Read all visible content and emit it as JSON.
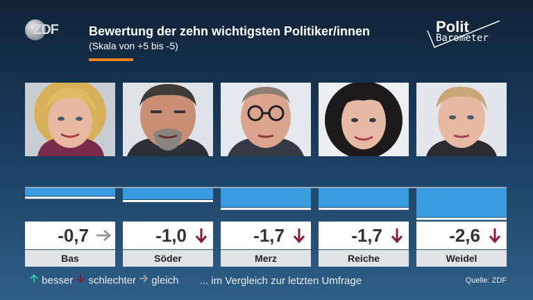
{
  "header": {
    "logo_text": "ZDF",
    "title": "Bewertung der zehn wichtigsten Politiker/innen",
    "subtitle": "(Skala von +5 bis -5)",
    "brand_line1": "Polit",
    "brand_line2": "Barometer"
  },
  "colors": {
    "bar": "#3b9be0",
    "accent": "#f0801e",
    "down": "#8b1a3a",
    "same": "#9a9a9a",
    "up": "#2ec4a8"
  },
  "people": [
    {
      "name": "Bas",
      "value_label": "-0,7",
      "trend": "same",
      "trend_icon": "arrow-right-icon"
    },
    {
      "name": "Söder",
      "value_label": "-1,0",
      "trend": "down",
      "trend_icon": "arrow-down-icon"
    },
    {
      "name": "Merz",
      "value_label": "-1,7",
      "trend": "down",
      "trend_icon": "arrow-down-icon"
    },
    {
      "name": "Reiche",
      "value_label": "-1,7",
      "trend": "down",
      "trend_icon": "arrow-down-icon"
    },
    {
      "name": "Weidel",
      "value_label": "-2,6",
      "trend": "down",
      "trend_icon": "arrow-down-icon"
    }
  ],
  "chart_data": {
    "type": "bar",
    "title": "Bewertung der zehn wichtigsten Politiker/innen",
    "subtitle": "(Skala von +5 bis -5)",
    "categories": [
      "Bas",
      "Söder",
      "Merz",
      "Reiche",
      "Weidel"
    ],
    "values": [
      -0.7,
      -1.0,
      -1.7,
      -1.7,
      -2.6
    ],
    "ylim": [
      -5,
      5
    ],
    "grid": false,
    "legend": "bottom-left"
  },
  "legend": {
    "better": "besser",
    "worse": "schlechter",
    "same": "gleich",
    "note": "... im Vergleich zur letzten Umfrage"
  },
  "source": "Quelle: ZDF"
}
